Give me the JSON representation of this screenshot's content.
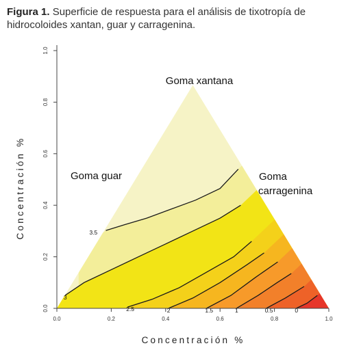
{
  "caption": {
    "label": "Figura 1.",
    "text": "Superficie de respuesta para el análisis de tixotropía de hidrocoloides xantan, guar y carragenina."
  },
  "chart_data": {
    "type": "heatmap",
    "xlabel": "Concentración %",
    "ylabel": "Concentración %",
    "xlim": [
      0,
      1
    ],
    "ylim": [
      0,
      1
    ],
    "x_ticks": [
      "0.0",
      "0.2",
      "0.4",
      "0.6",
      "0.8",
      "1.0"
    ],
    "y_ticks": [
      "0.0",
      "0.2",
      "0.4",
      "0.6",
      "0.8",
      "1.0"
    ],
    "triangle": [
      [
        0,
        0
      ],
      [
        1,
        0
      ],
      [
        0.5,
        0.866
      ]
    ],
    "vertex_labels": [
      {
        "text": "Goma xantana",
        "vertex": "top"
      },
      {
        "text": "Goma guar",
        "vertex": "left"
      },
      {
        "text": "Goma",
        "vertex": "right"
      },
      {
        "text": "carragenina",
        "vertex": "right"
      }
    ],
    "contours": [
      {
        "level": "3.5",
        "points": [
          [
            0.18,
            0.302
          ],
          [
            0.25,
            0.325
          ],
          [
            0.33,
            0.35
          ],
          [
            0.42,
            0.385
          ],
          [
            0.51,
            0.42
          ],
          [
            0.6,
            0.465
          ],
          [
            0.667,
            0.54
          ]
        ]
      },
      {
        "level": "3",
        "points": [
          [
            0.03,
            0.05
          ],
          [
            0.1,
            0.1
          ],
          [
            0.2,
            0.15
          ],
          [
            0.3,
            0.2
          ],
          [
            0.4,
            0.25
          ],
          [
            0.5,
            0.3
          ],
          [
            0.6,
            0.35
          ],
          [
            0.676,
            0.4
          ]
        ]
      },
      {
        "level": "2.5",
        "points": [
          [
            0.26,
            0.005
          ],
          [
            0.35,
            0.035
          ],
          [
            0.45,
            0.08
          ],
          [
            0.55,
            0.14
          ],
          [
            0.65,
            0.2
          ],
          [
            0.716,
            0.26
          ]
        ]
      },
      {
        "level": "2",
        "points": [
          [
            0.41,
            0.0
          ],
          [
            0.5,
            0.04
          ],
          [
            0.6,
            0.1
          ],
          [
            0.7,
            0.17
          ],
          [
            0.762,
            0.215
          ]
        ]
      },
      {
        "level": "1.5",
        "points": [
          [
            0.55,
            0.0
          ],
          [
            0.64,
            0.05
          ],
          [
            0.73,
            0.12
          ],
          [
            0.812,
            0.18
          ]
        ]
      },
      {
        "level": "1",
        "points": [
          [
            0.66,
            0.0
          ],
          [
            0.74,
            0.05
          ],
          [
            0.81,
            0.1
          ],
          [
            0.862,
            0.135
          ]
        ]
      },
      {
        "level": "0.5",
        "points": [
          [
            0.77,
            0.0
          ],
          [
            0.84,
            0.04
          ],
          [
            0.909,
            0.085
          ]
        ]
      },
      {
        "level": "0",
        "points": [
          [
            0.88,
            0.0
          ],
          [
            0.92,
            0.02
          ],
          [
            0.958,
            0.05
          ]
        ]
      }
    ],
    "colors": {
      "low": "#e6362a",
      "mid": "#f79a2a",
      "high": "#f2e416",
      "top": "#f6f3c6"
    }
  }
}
